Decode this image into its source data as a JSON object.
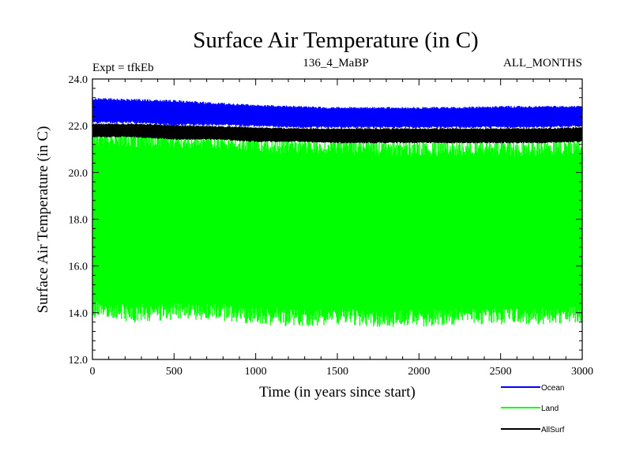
{
  "chart_data": {
    "type": "line",
    "title": "Surface Air Temperature (in C)",
    "subtitle_left": "Expt = tfkEb",
    "subtitle_center": "136_4_MaBP",
    "subtitle_right": "ALL_MONTHS",
    "xlabel": "Time (in years since start)",
    "ylabel": "Surface Air Temperature (in C)",
    "xlim": [
      0,
      3000
    ],
    "ylim": [
      12.0,
      24.0
    ],
    "x_ticks": [
      0,
      500,
      1000,
      1500,
      2000,
      2500,
      3000
    ],
    "x_tick_labels": [
      "0",
      "500",
      "1000",
      "1500",
      "2000",
      "2500",
      "3000"
    ],
    "y_ticks": [
      12.0,
      14.0,
      16.0,
      18.0,
      20.0,
      22.0,
      24.0
    ],
    "y_tick_labels": [
      "12.0",
      "14.0",
      "16.0",
      "18.0",
      "20.0",
      "22.0",
      "24.0"
    ],
    "grid": false,
    "legend_position": "bottom-right, below plot",
    "series": [
      {
        "name": "Ocean",
        "color": "#0000ff",
        "draw_order": 3,
        "envelope": {
          "x": [
            0,
            250,
            500,
            750,
            1000,
            1250,
            1500,
            1750,
            2000,
            2250,
            2500,
            2750,
            3000
          ],
          "min": [
            22.1,
            22.1,
            22.0,
            22.0,
            21.95,
            21.9,
            21.9,
            21.9,
            21.9,
            21.9,
            21.9,
            21.9,
            21.95
          ],
          "max": [
            23.2,
            23.15,
            23.1,
            23.0,
            22.9,
            22.85,
            22.8,
            22.8,
            22.8,
            22.8,
            22.85,
            22.85,
            22.85
          ]
        }
      },
      {
        "name": "Land",
        "color": "#00ff00",
        "draw_order": 1,
        "envelope": {
          "x": [
            0,
            250,
            500,
            750,
            1000,
            1250,
            1500,
            1750,
            2000,
            2250,
            2500,
            2750,
            3000
          ],
          "min": [
            13.8,
            13.6,
            13.7,
            13.7,
            13.5,
            13.4,
            13.5,
            13.4,
            13.4,
            13.5,
            13.5,
            13.5,
            13.6
          ],
          "max": [
            21.9,
            21.8,
            21.8,
            21.7,
            21.6,
            21.5,
            21.5,
            21.4,
            21.4,
            21.4,
            21.4,
            21.4,
            21.5
          ]
        }
      },
      {
        "name": "AllSurf",
        "color": "#000000",
        "draw_order": 2,
        "envelope": {
          "x": [
            0,
            250,
            500,
            750,
            1000,
            1250,
            1500,
            1750,
            2000,
            2250,
            2500,
            2750,
            3000
          ],
          "min": [
            21.5,
            21.5,
            21.4,
            21.4,
            21.3,
            21.3,
            21.25,
            21.25,
            21.25,
            21.25,
            21.25,
            21.25,
            21.3
          ],
          "max": [
            22.1,
            22.1,
            22.05,
            22.0,
            21.95,
            21.9,
            21.9,
            21.9,
            21.9,
            21.9,
            21.9,
            21.9,
            21.95
          ]
        }
      }
    ]
  }
}
